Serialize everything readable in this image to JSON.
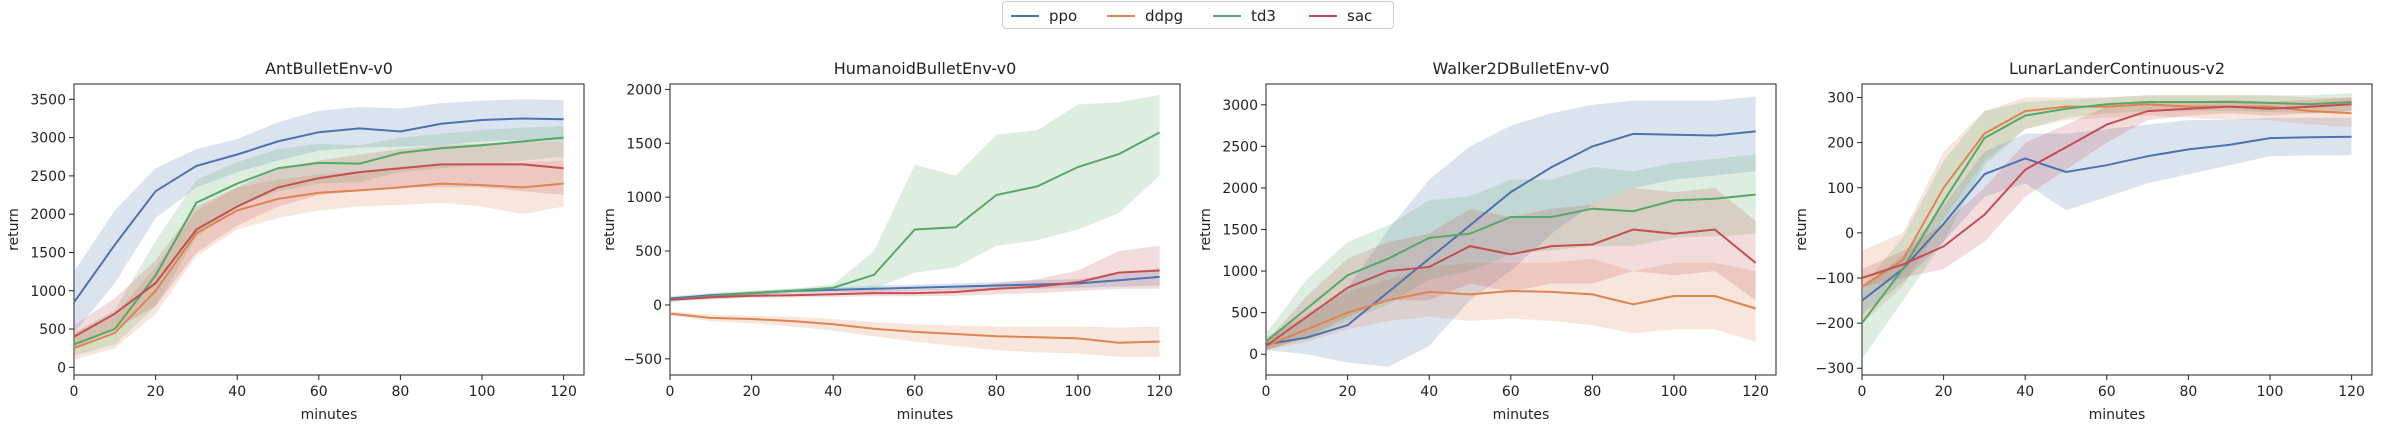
{
  "legend": [
    {
      "name": "ppo",
      "color": "#4c72b0"
    },
    {
      "name": "ddpg",
      "color": "#dd8452"
    },
    {
      "name": "td3",
      "color": "#55a868"
    },
    {
      "name": "sac",
      "color": "#c44e52"
    }
  ],
  "chart_data": [
    {
      "type": "line",
      "title": "AntBulletEnv-v0",
      "xlabel": "minutes",
      "ylabel": "return",
      "xlim": [
        0,
        125
      ],
      "ylim": [
        -100,
        3700
      ],
      "xticks": [
        0,
        20,
        40,
        60,
        80,
        100,
        120
      ],
      "yticks": [
        0,
        500,
        1000,
        1500,
        2000,
        2500,
        3000,
        3500
      ],
      "x": [
        0,
        10,
        20,
        30,
        40,
        50,
        60,
        70,
        80,
        90,
        100,
        110,
        120
      ],
      "series": [
        {
          "name": "ppo",
          "values": [
            850,
            1600,
            2300,
            2630,
            2780,
            2950,
            3070,
            3120,
            3080,
            3180,
            3230,
            3250,
            3240
          ],
          "lower": [
            450,
            1100,
            1950,
            2350,
            2550,
            2700,
            2830,
            2870,
            2880,
            2900,
            2950,
            2970,
            2960
          ],
          "upper": [
            1250,
            2050,
            2600,
            2850,
            2980,
            3200,
            3350,
            3400,
            3380,
            3450,
            3480,
            3500,
            3490
          ]
        },
        {
          "name": "ddpg",
          "values": [
            250,
            450,
            1000,
            1750,
            2050,
            2200,
            2280,
            2310,
            2350,
            2400,
            2380,
            2350,
            2400
          ],
          "lower": [
            100,
            250,
            700,
            1450,
            1800,
            1950,
            2050,
            2100,
            2120,
            2150,
            2100,
            2000,
            2100
          ],
          "upper": [
            450,
            700,
            1300,
            2050,
            2350,
            2450,
            2520,
            2560,
            2600,
            2650,
            2660,
            2680,
            2700
          ]
        },
        {
          "name": "td3",
          "values": [
            300,
            500,
            1200,
            2150,
            2400,
            2600,
            2670,
            2660,
            2800,
            2860,
            2900,
            2950,
            3000
          ],
          "lower": [
            150,
            300,
            800,
            1700,
            2100,
            2300,
            2400,
            2420,
            2550,
            2600,
            2650,
            2700,
            2750
          ],
          "upper": [
            450,
            750,
            1650,
            2450,
            2680,
            2850,
            2920,
            2900,
            3000,
            3050,
            3100,
            3130,
            3150
          ]
        },
        {
          "name": "sac",
          "values": [
            400,
            700,
            1100,
            1800,
            2100,
            2350,
            2470,
            2550,
            2600,
            2650,
            2650,
            2650,
            2600
          ],
          "lower": [
            250,
            500,
            800,
            1500,
            1850,
            2100,
            2250,
            2300,
            2350,
            2350,
            2350,
            2300,
            2250
          ],
          "upper": [
            550,
            900,
            1400,
            2100,
            2350,
            2600,
            2700,
            2780,
            2850,
            2900,
            2920,
            2950,
            2950
          ]
        }
      ]
    },
    {
      "type": "line",
      "title": "HumanoidBulletEnv-v0",
      "xlabel": "minutes",
      "ylabel": "return",
      "xlim": [
        0,
        125
      ],
      "ylim": [
        -650,
        2050
      ],
      "xticks": [
        0,
        20,
        40,
        60,
        80,
        100,
        120
      ],
      "yticks": [
        -500,
        0,
        500,
        1000,
        1500,
        2000
      ],
      "x": [
        0,
        10,
        20,
        30,
        40,
        50,
        60,
        70,
        80,
        90,
        100,
        110,
        120
      ],
      "series": [
        {
          "name": "ppo",
          "values": [
            60,
            90,
            110,
            130,
            140,
            150,
            160,
            170,
            180,
            190,
            200,
            230,
            260
          ],
          "lower": [
            40,
            70,
            90,
            110,
            120,
            120,
            130,
            140,
            150,
            150,
            160,
            170,
            180
          ],
          "upper": [
            80,
            110,
            130,
            150,
            160,
            180,
            190,
            200,
            210,
            230,
            240,
            290,
            340
          ]
        },
        {
          "name": "ddpg",
          "values": [
            -80,
            -120,
            -130,
            -150,
            -180,
            -220,
            -250,
            -270,
            -290,
            -300,
            -310,
            -350,
            -340
          ],
          "lower": [
            -100,
            -150,
            -170,
            -200,
            -240,
            -290,
            -340,
            -380,
            -420,
            -440,
            -450,
            -480,
            -480
          ],
          "upper": [
            -60,
            -90,
            -100,
            -110,
            -130,
            -160,
            -180,
            -190,
            -200,
            -200,
            -200,
            -210,
            -200
          ]
        },
        {
          "name": "td3",
          "values": [
            50,
            80,
            110,
            130,
            160,
            280,
            700,
            720,
            1020,
            1100,
            1280,
            1400,
            1600
          ],
          "lower": [
            30,
            60,
            90,
            110,
            130,
            150,
            300,
            350,
            550,
            600,
            700,
            850,
            1200
          ],
          "upper": [
            70,
            100,
            130,
            150,
            190,
            500,
            1300,
            1200,
            1580,
            1620,
            1860,
            1880,
            1950
          ]
        },
        {
          "name": "sac",
          "values": [
            50,
            70,
            85,
            90,
            100,
            110,
            110,
            120,
            150,
            170,
            210,
            300,
            320
          ],
          "lower": [
            30,
            50,
            65,
            70,
            75,
            80,
            80,
            85,
            100,
            110,
            130,
            150,
            150
          ],
          "upper": [
            70,
            90,
            105,
            110,
            125,
            140,
            140,
            155,
            200,
            240,
            320,
            500,
            550
          ]
        }
      ]
    },
    {
      "type": "line",
      "title": "Walker2DBulletEnv-v0",
      "xlabel": "minutes",
      "ylabel": "return",
      "xlim": [
        0,
        125
      ],
      "ylim": [
        -250,
        3250
      ],
      "xticks": [
        0,
        20,
        40,
        60,
        80,
        100,
        120
      ],
      "yticks": [
        0,
        500,
        1000,
        1500,
        2000,
        2500,
        3000
      ],
      "x": [
        0,
        10,
        20,
        30,
        40,
        50,
        60,
        70,
        80,
        90,
        100,
        110,
        120
      ],
      "series": [
        {
          "name": "ppo",
          "values": [
            120,
            200,
            350,
            750,
            1150,
            1550,
            1950,
            2250,
            2500,
            2650,
            2640,
            2630,
            2680
          ],
          "lower": [
            50,
            0,
            -100,
            -150,
            100,
            650,
            1000,
            1450,
            1800,
            2000,
            2100,
            2150,
            2200
          ],
          "upper": [
            200,
            450,
            800,
            1500,
            2100,
            2500,
            2750,
            2900,
            3000,
            3050,
            3050,
            3050,
            3100
          ]
        },
        {
          "name": "ddpg",
          "values": [
            100,
            300,
            500,
            650,
            750,
            720,
            760,
            750,
            720,
            600,
            700,
            700,
            550
          ],
          "lower": [
            50,
            150,
            300,
            400,
            450,
            400,
            430,
            400,
            350,
            250,
            300,
            300,
            150
          ],
          "upper": [
            200,
            500,
            750,
            900,
            1050,
            1100,
            1100,
            1100,
            1150,
            1000,
            1100,
            1100,
            1000
          ]
        },
        {
          "name": "td3",
          "values": [
            150,
            550,
            950,
            1150,
            1400,
            1450,
            1650,
            1650,
            1750,
            1720,
            1850,
            1870,
            1920
          ],
          "lower": [
            50,
            200,
            400,
            600,
            900,
            1000,
            1200,
            1250,
            1300,
            1300,
            1400,
            1420,
            1450
          ],
          "upper": [
            250,
            900,
            1350,
            1550,
            1850,
            1900,
            2100,
            2100,
            2250,
            2200,
            2300,
            2350,
            2400
          ]
        },
        {
          "name": "sac",
          "values": [
            100,
            450,
            800,
            1000,
            1050,
            1300,
            1200,
            1300,
            1320,
            1500,
            1450,
            1500,
            1100
          ],
          "lower": [
            50,
            200,
            450,
            650,
            650,
            850,
            750,
            850,
            850,
            1000,
            950,
            1000,
            650
          ],
          "upper": [
            150,
            700,
            1150,
            1350,
            1450,
            1750,
            1650,
            1750,
            1800,
            2000,
            1950,
            2000,
            1600
          ]
        }
      ]
    },
    {
      "type": "line",
      "title": "LunarLanderContinuous-v2",
      "xlabel": "minutes",
      "ylabel": "return",
      "xlim": [
        0,
        125
      ],
      "ylim": [
        -315,
        330
      ],
      "xticks": [
        0,
        20,
        40,
        60,
        80,
        100,
        120
      ],
      "yticks": [
        -300,
        -200,
        -100,
        0,
        100,
        200,
        300
      ],
      "x": [
        0,
        10,
        20,
        30,
        40,
        50,
        60,
        70,
        80,
        90,
        100,
        110,
        120
      ],
      "series": [
        {
          "name": "ppo",
          "values": [
            -150,
            -80,
            20,
            130,
            165,
            135,
            150,
            170,
            185,
            195,
            210,
            212,
            213
          ],
          "lower": [
            -180,
            -110,
            -20,
            80,
            110,
            50,
            80,
            110,
            130,
            150,
            170,
            172,
            172
          ],
          "upper": [
            -120,
            -50,
            60,
            180,
            220,
            220,
            230,
            240,
            250,
            250,
            255,
            255,
            255
          ]
        },
        {
          "name": "ddpg",
          "values": [
            -120,
            -60,
            100,
            220,
            270,
            280,
            280,
            285,
            280,
            280,
            280,
            270,
            265
          ],
          "lower": [
            -200,
            -120,
            30,
            160,
            230,
            250,
            255,
            260,
            255,
            250,
            250,
            240,
            235
          ],
          "upper": [
            -40,
            0,
            180,
            270,
            300,
            300,
            300,
            305,
            305,
            305,
            305,
            300,
            300
          ]
        },
        {
          "name": "td3",
          "values": [
            -200,
            -80,
            70,
            210,
            260,
            275,
            285,
            290,
            290,
            290,
            288,
            285,
            290
          ],
          "lower": [
            -280,
            -150,
            -20,
            150,
            230,
            255,
            265,
            270,
            270,
            270,
            268,
            265,
            270
          ],
          "upper": [
            -120,
            -10,
            160,
            270,
            290,
            295,
            300,
            305,
            305,
            305,
            305,
            305,
            310
          ]
        },
        {
          "name": "sac",
          "values": [
            -100,
            -70,
            -30,
            40,
            140,
            190,
            240,
            270,
            275,
            280,
            275,
            280,
            285
          ],
          "lower": [
            -120,
            -100,
            -80,
            -20,
            80,
            140,
            200,
            250,
            260,
            265,
            260,
            265,
            270
          ],
          "upper": [
            -80,
            -40,
            20,
            100,
            200,
            240,
            280,
            290,
            290,
            295,
            290,
            295,
            300
          ]
        }
      ]
    }
  ]
}
